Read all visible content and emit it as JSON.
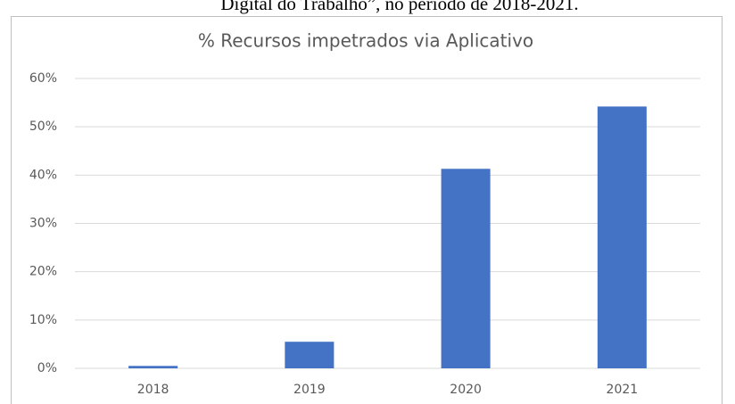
{
  "caption": "Digital do Trabalho”, no período de 2018-2021.",
  "chart_data": {
    "type": "bar",
    "title": "% Recursos impetrados via Aplicativo",
    "categories": [
      "2018",
      "2019",
      "2020",
      "2021"
    ],
    "values": [
      0.5,
      5.5,
      41.3,
      54.2
    ],
    "color": "#4472c4",
    "ylim": [
      0,
      60
    ],
    "yticks": [
      {
        "value": 0,
        "label": "0%"
      },
      {
        "value": 10,
        "label": "10%"
      },
      {
        "value": 20,
        "label": "20%"
      },
      {
        "value": 30,
        "label": "30%"
      },
      {
        "value": 40,
        "label": "40%"
      },
      {
        "value": 50,
        "label": "50%"
      },
      {
        "value": 60,
        "label": "60%"
      }
    ],
    "grid": true
  }
}
